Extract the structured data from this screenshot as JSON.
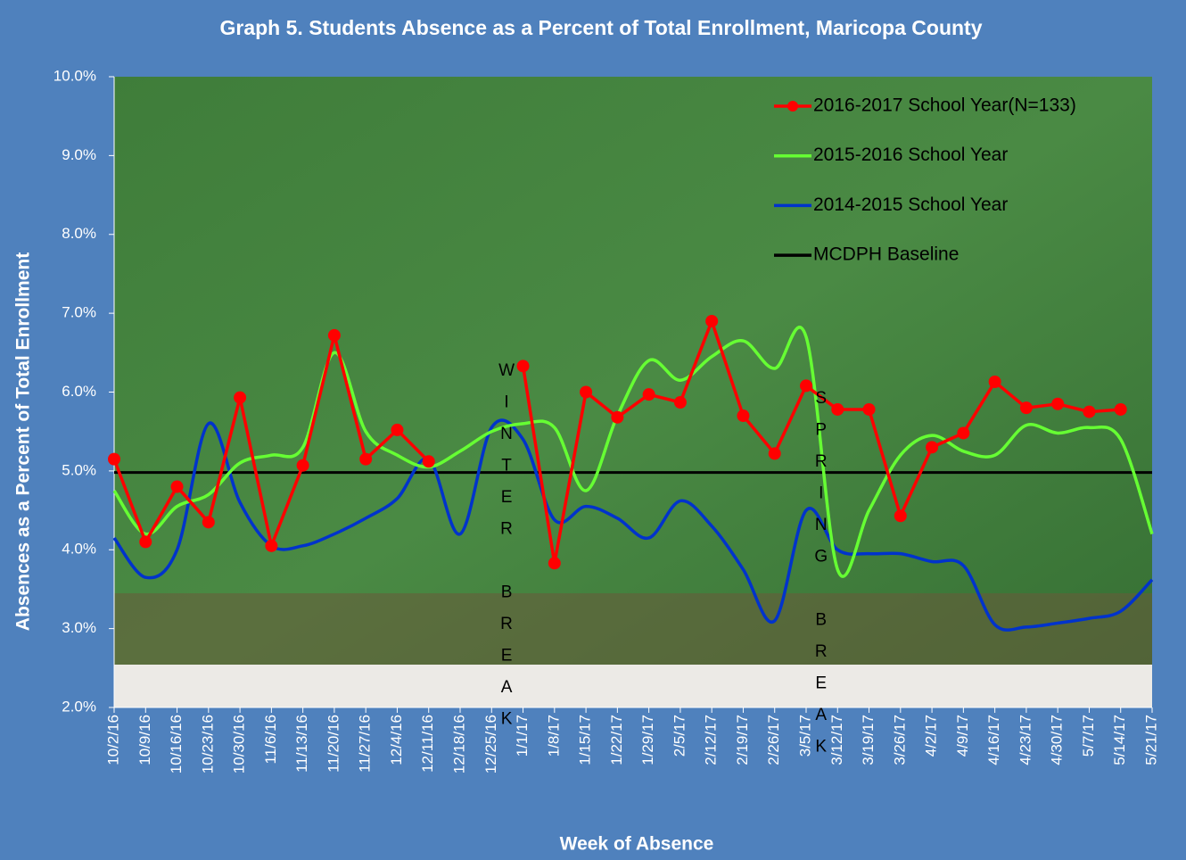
{
  "chart_data": {
    "type": "line",
    "title": "Graph 5. Students Absence as a Percent of Total Enrollment,  Maricopa County",
    "x_label": "Week of Absence",
    "y_label": "Absences as a Percent of Total Enrollment",
    "categories": [
      "10/2/16",
      "10/9/16",
      "10/16/16",
      "10/23/16",
      "10/30/16",
      "11/6/16",
      "11/13/16",
      "11/20/16",
      "11/27/16",
      "12/4/16",
      "12/11/16",
      "12/18/16",
      "12/25/16",
      "1/1/17",
      "1/8/17",
      "1/15/17",
      "1/22/17",
      "1/29/17",
      "2/5/17",
      "2/12/17",
      "2/19/17",
      "2/26/17",
      "3/5/17",
      "3/12/17",
      "3/19/17",
      "3/26/17",
      "4/2/17",
      "4/9/17",
      "4/16/17",
      "4/23/17",
      "4/30/17",
      "5/7/17",
      "5/14/17",
      "5/21/17"
    ],
    "series": [
      {
        "name": "2016-2017 School Year(N=133)",
        "color": "#ff0000",
        "markers": true,
        "smooth": false,
        "values": [
          5.15,
          4.1,
          4.8,
          4.35,
          5.93,
          4.05,
          5.07,
          6.72,
          5.15,
          5.52,
          5.12,
          null,
          null,
          6.33,
          3.83,
          6.0,
          5.68,
          5.97,
          5.87,
          6.9,
          5.7,
          5.22,
          6.08,
          5.78,
          5.78,
          4.43,
          5.3,
          5.48,
          6.13,
          5.8,
          5.85,
          5.75,
          5.78,
          null
        ]
      },
      {
        "name": "2015-2016 School Year",
        "color": "#66ff33",
        "markers": false,
        "smooth": true,
        "values": [
          4.75,
          4.2,
          4.55,
          4.7,
          5.1,
          5.2,
          5.3,
          6.5,
          5.5,
          5.2,
          5.05,
          5.25,
          5.5,
          5.6,
          5.55,
          4.75,
          5.7,
          6.4,
          6.15,
          6.45,
          6.65,
          6.3,
          6.7,
          3.75,
          4.5,
          5.2,
          5.45,
          5.25,
          5.2,
          5.58,
          5.48,
          5.55,
          5.4,
          4.2
        ]
      },
      {
        "name": "2014-2015 School Year",
        "color": "#0033cc",
        "markers": false,
        "smooth": true,
        "values": [
          4.15,
          3.65,
          4.0,
          5.6,
          4.6,
          4.05,
          4.05,
          4.2,
          4.4,
          4.65,
          5.15,
          4.2,
          5.55,
          5.4,
          4.38,
          4.55,
          4.4,
          4.15,
          4.62,
          4.3,
          3.75,
          3.1,
          4.5,
          4.0,
          3.95,
          3.95,
          3.85,
          3.8,
          3.05,
          3.02,
          3.07,
          3.13,
          3.22,
          3.62
        ]
      },
      {
        "name": "MCDPH Baseline",
        "color": "#000000",
        "markers": false,
        "smooth": false,
        "values": [
          4.98,
          4.98,
          4.98,
          4.98,
          4.98,
          4.98,
          4.98,
          4.98,
          4.98,
          4.98,
          4.98,
          4.98,
          4.98,
          4.98,
          4.98,
          4.98,
          4.98,
          4.98,
          4.98,
          4.98,
          4.98,
          4.98,
          4.98,
          4.98,
          4.98,
          4.98,
          4.98,
          4.98,
          4.98,
          4.98,
          4.98,
          4.98,
          4.98,
          4.98
        ]
      }
    ],
    "ylim": [
      2,
      10
    ],
    "yticks": [
      {
        "value": 2,
        "label": "2.0%"
      },
      {
        "value": 3,
        "label": "3.0%"
      },
      {
        "value": 4,
        "label": "4.0%"
      },
      {
        "value": 5,
        "label": "5.0%"
      },
      {
        "value": 6,
        "label": "6.0%"
      },
      {
        "value": 7,
        "label": "7.0%"
      },
      {
        "value": 8,
        "label": "8.0%"
      },
      {
        "value": 9,
        "label": "9.0%"
      },
      {
        "value": 10,
        "label": "10.0%"
      }
    ],
    "annotations": [
      {
        "text": "WINTER BREAK",
        "category": "1/1/17"
      },
      {
        "text": "SPRING BREAK",
        "category": "3/12/17"
      }
    ],
    "legend_position": "upper right"
  }
}
